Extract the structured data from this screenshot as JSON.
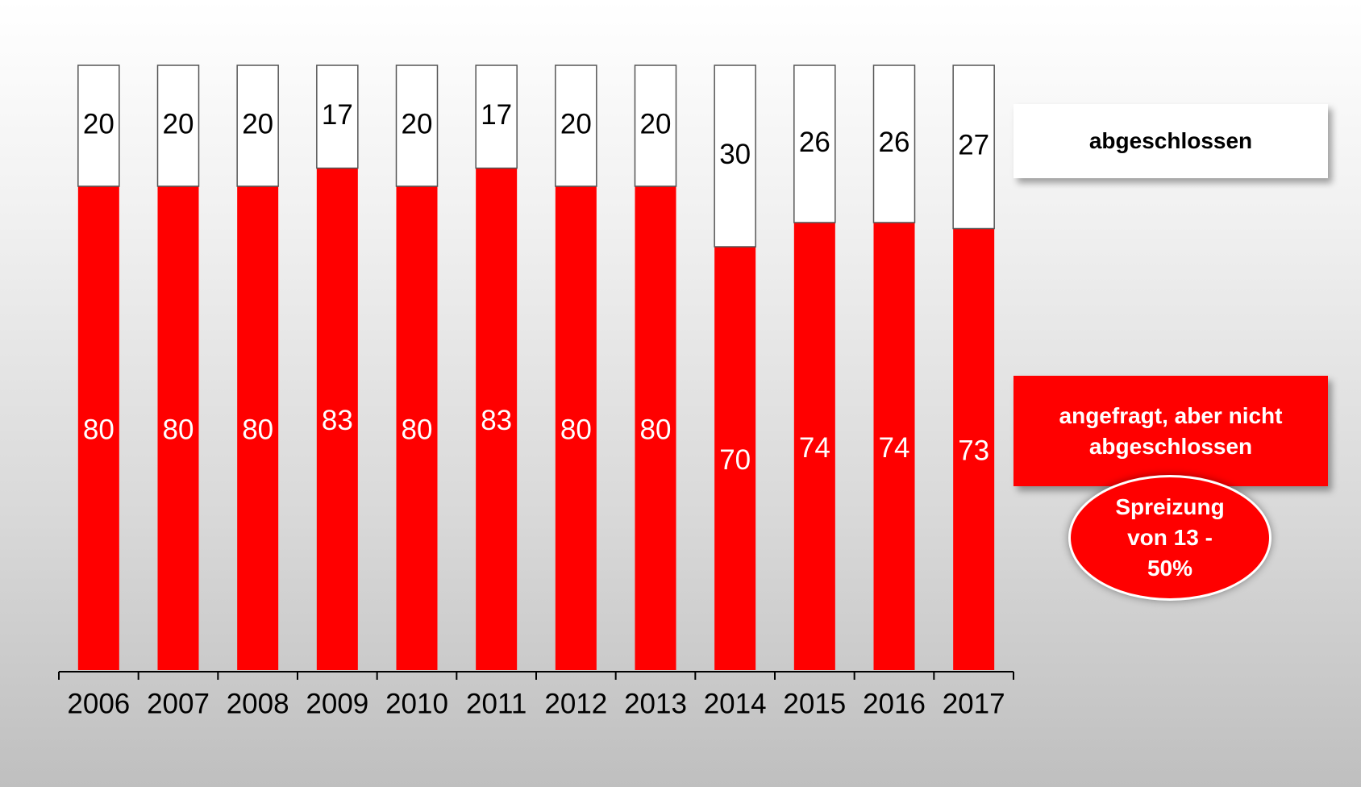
{
  "chart_data": {
    "type": "stacked_bar",
    "categories": [
      "2006",
      "2007",
      "2008",
      "2009",
      "2010",
      "2011",
      "2012",
      "2013",
      "2014",
      "2015",
      "2016",
      "2017"
    ],
    "series": [
      {
        "name": "angefragt, aber nicht abgeschlossen",
        "color": "#ff0000",
        "values": [
          80,
          80,
          80,
          83,
          80,
          83,
          80,
          80,
          70,
          74,
          74,
          73
        ]
      },
      {
        "name": "abgeschlossen",
        "color": "#ffffff",
        "values": [
          20,
          20,
          20,
          17,
          20,
          17,
          20,
          20,
          30,
          26,
          26,
          27
        ]
      }
    ],
    "ylim": [
      0,
      100
    ],
    "legend": "right",
    "annotation": "Spreizung von 13 - 50%"
  }
}
